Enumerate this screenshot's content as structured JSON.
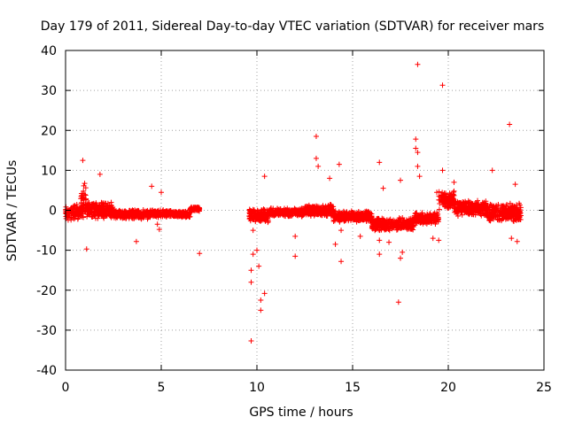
{
  "chart_data": {
    "type": "scatter",
    "title": "Day 179 of 2011, Sidereal Day-to-day VTEC variation (SDTVAR) for receiver mars",
    "xlabel": "GPS time / hours",
    "ylabel": "SDTVAR / TECUs",
    "xlim": [
      0,
      25
    ],
    "ylim": [
      -40,
      40
    ],
    "xticks": [
      0,
      5,
      10,
      15,
      20,
      25
    ],
    "yticks": [
      -40,
      -30,
      -20,
      -10,
      0,
      10,
      20,
      30,
      40
    ],
    "grid": true,
    "marker": "+",
    "color": "#ff0000",
    "dense_bands": [
      {
        "x_start": 0.0,
        "x_end": 0.8,
        "y_center": -0.5,
        "y_spread": 2.2
      },
      {
        "x_start": 0.8,
        "x_end": 1.1,
        "y_center": 1.5,
        "y_spread": 5.5
      },
      {
        "x_start": 1.1,
        "x_end": 2.5,
        "y_center": 0.0,
        "y_spread": 2.2
      },
      {
        "x_start": 2.5,
        "x_end": 4.5,
        "y_center": -1.0,
        "y_spread": 1.2
      },
      {
        "x_start": 4.5,
        "x_end": 5.5,
        "y_center": -0.8,
        "y_spread": 1.0
      },
      {
        "x_start": 5.5,
        "x_end": 6.5,
        "y_center": -1.0,
        "y_spread": 0.8
      },
      {
        "x_start": 6.5,
        "x_end": 7.0,
        "y_center": 0.3,
        "y_spread": 0.6
      },
      {
        "x_start": 9.6,
        "x_end": 10.6,
        "y_center": -1.5,
        "y_spread": 2.0
      },
      {
        "x_start": 10.6,
        "x_end": 12.5,
        "y_center": -0.5,
        "y_spread": 1.2
      },
      {
        "x_start": 12.5,
        "x_end": 14.0,
        "y_center": 0.0,
        "y_spread": 1.5
      },
      {
        "x_start": 14.0,
        "x_end": 16.0,
        "y_center": -1.5,
        "y_spread": 1.5
      },
      {
        "x_start": 16.0,
        "x_end": 18.2,
        "y_center": -3.5,
        "y_spread": 1.8
      },
      {
        "x_start": 18.2,
        "x_end": 19.5,
        "y_center": -2.0,
        "y_spread": 1.5
      },
      {
        "x_start": 19.5,
        "x_end": 20.3,
        "y_center": 2.5,
        "y_spread": 2.5
      },
      {
        "x_start": 20.3,
        "x_end": 22.0,
        "y_center": 0.5,
        "y_spread": 2.0
      },
      {
        "x_start": 22.0,
        "x_end": 23.8,
        "y_center": -0.5,
        "y_spread": 2.5
      }
    ],
    "outliers": [
      [
        0.9,
        12.5
      ],
      [
        1.1,
        -9.7
      ],
      [
        1.8,
        9.0
      ],
      [
        3.7,
        -7.8
      ],
      [
        4.5,
        6.0
      ],
      [
        5.0,
        4.5
      ],
      [
        4.8,
        -3.5
      ],
      [
        4.9,
        -4.8
      ],
      [
        7.0,
        -10.8
      ],
      [
        9.7,
        -32.7
      ],
      [
        9.7,
        -18.0
      ],
      [
        9.7,
        -15.0
      ],
      [
        9.8,
        -11.0
      ],
      [
        9.8,
        -5.0
      ],
      [
        10.0,
        -10.0
      ],
      [
        10.1,
        -14.0
      ],
      [
        10.2,
        -22.5
      ],
      [
        10.2,
        -25.0
      ],
      [
        10.4,
        -20.8
      ],
      [
        10.4,
        8.5
      ],
      [
        12.0,
        -11.5
      ],
      [
        12.0,
        -6.5
      ],
      [
        13.1,
        18.5
      ],
      [
        13.1,
        13.0
      ],
      [
        13.2,
        11.0
      ],
      [
        14.1,
        -8.5
      ],
      [
        14.3,
        11.5
      ],
      [
        14.4,
        -12.8
      ],
      [
        14.4,
        -5.0
      ],
      [
        15.4,
        -6.5
      ],
      [
        16.4,
        12.0
      ],
      [
        16.4,
        -7.5
      ],
      [
        16.4,
        -11.0
      ],
      [
        16.9,
        -8.0
      ],
      [
        17.5,
        7.5
      ],
      [
        17.4,
        -23.0
      ],
      [
        17.5,
        -12.0
      ],
      [
        17.6,
        -10.5
      ],
      [
        18.4,
        36.5
      ],
      [
        18.3,
        17.8
      ],
      [
        18.3,
        15.5
      ],
      [
        18.4,
        14.5
      ],
      [
        18.4,
        11.0
      ],
      [
        18.5,
        8.5
      ],
      [
        19.7,
        31.3
      ],
      [
        19.7,
        10.0
      ],
      [
        19.4,
        4.5
      ],
      [
        19.2,
        -7.0
      ],
      [
        19.5,
        -7.5
      ],
      [
        22.3,
        10.0
      ],
      [
        23.2,
        21.5
      ],
      [
        23.5,
        6.5
      ],
      [
        23.3,
        -7.0
      ],
      [
        23.6,
        -7.8
      ],
      [
        20.3,
        7.0
      ],
      [
        2.0,
        -2.0
      ],
      [
        13.8,
        8.0
      ],
      [
        16.6,
        5.5
      ]
    ]
  }
}
